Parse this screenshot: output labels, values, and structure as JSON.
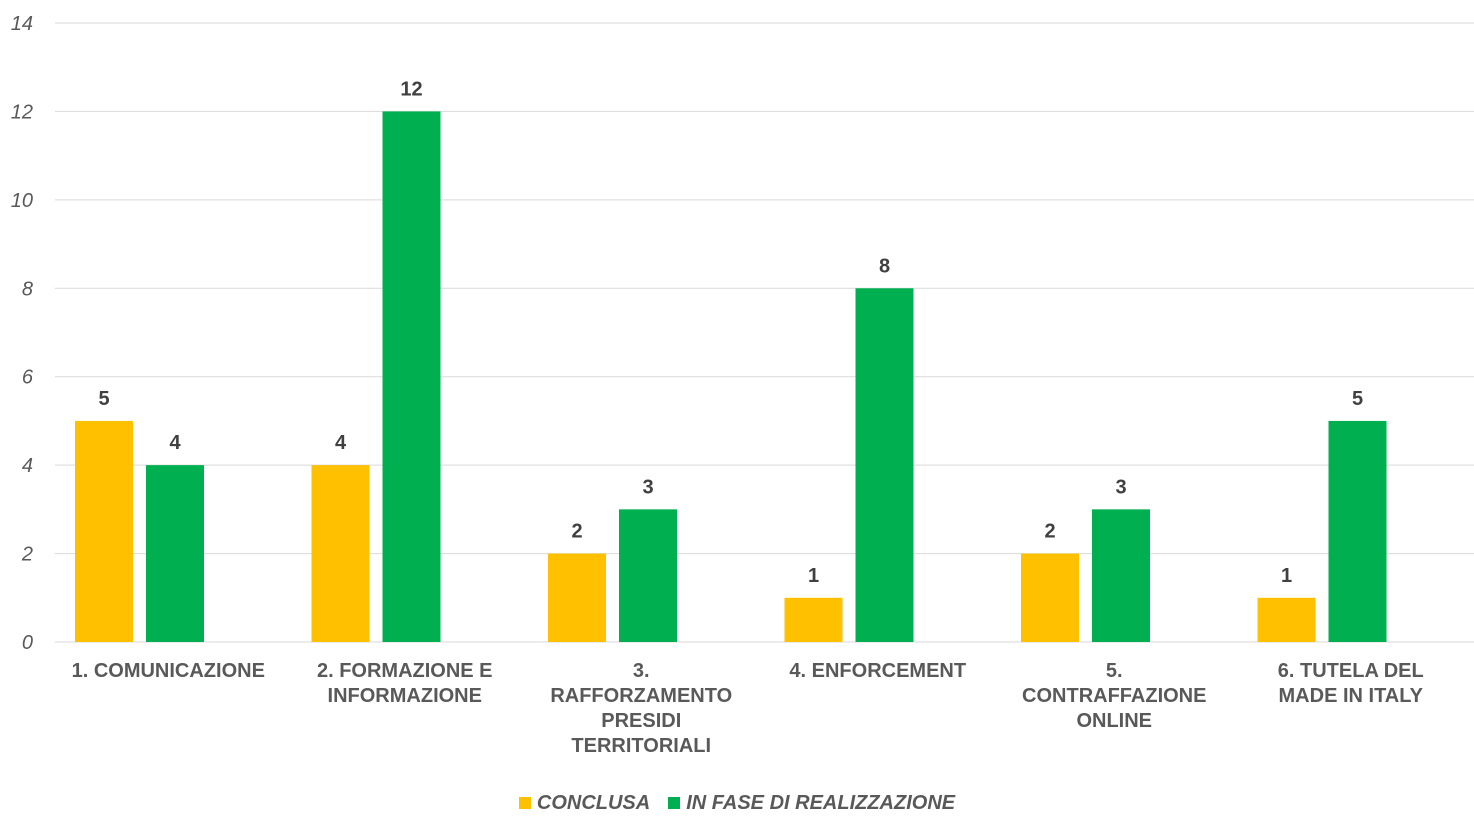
{
  "chart_data": {
    "type": "bar",
    "categories": [
      [
        "1. COMUNICAZIONE"
      ],
      [
        "2. FORMAZIONE E",
        "INFORMAZIONE"
      ],
      [
        "3.",
        "RAFFORZAMENTO",
        "PRESIDI",
        "TERRITORIALI"
      ],
      [
        "4. ENFORCEMENT"
      ],
      [
        "5.",
        "CONTRAFFAZIONE",
        "ONLINE"
      ],
      [
        "6. TUTELA DEL",
        "MADE IN ITALY"
      ]
    ],
    "series": [
      {
        "name": "CONCLUSA",
        "color": "#FFC000",
        "values": [
          5,
          4,
          2,
          1,
          2,
          1
        ]
      },
      {
        "name": "IN FASE DI REALIZZAZIONE",
        "color": "#00B050",
        "values": [
          4,
          12,
          3,
          8,
          3,
          5
        ]
      }
    ],
    "yticks": [
      "0",
      "2",
      "4",
      "6",
      "8",
      "10",
      "12",
      "14"
    ],
    "ylim": [
      0,
      14
    ],
    "grid": true,
    "legend_position": "bottom",
    "title": "",
    "xlabel": "",
    "ylabel": ""
  }
}
